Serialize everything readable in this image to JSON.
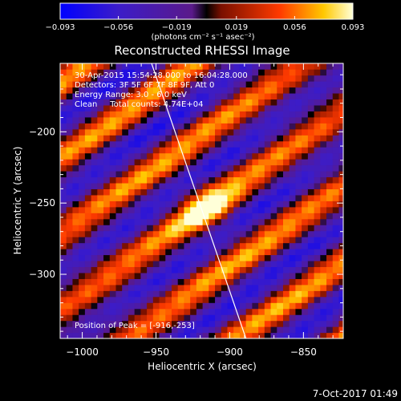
{
  "chart_data": {
    "type": "heatmap",
    "title": "Reconstructed RHESSI Image",
    "xlabel": "Heliocentric X (arcsec)",
    "ylabel": "Heliocentric Y (arcsec)",
    "xlim": [
      -1015,
      -823
    ],
    "ylim": [
      -345,
      -152
    ],
    "x_ticks": [
      -1000,
      -950,
      -900,
      -850
    ],
    "y_ticks": [
      -200,
      -250,
      -300
    ],
    "x_tick_labels": [
      "−1000",
      "−950",
      "−900",
      "−850"
    ],
    "y_tick_labels": [
      "−200",
      "−250",
      "−300"
    ],
    "colorbar": {
      "min": -0.093,
      "max": 0.093,
      "ticks": [
        -0.093,
        -0.056,
        -0.019,
        0.019,
        0.056,
        0.093
      ],
      "tick_labels": [
        "−0.093",
        "−0.056",
        "−0.019",
        "0.019",
        "0.056",
        "0.093"
      ],
      "units": "(photons cm⁻² s⁻¹ asec⁻²)"
    },
    "annotations": [
      "30-Apr-2015 15:54:28.000 to 16:04:28.000",
      "Detectors: 3F 5F 6F 7F 8F 9F, Att 0",
      "Energy Range: 3.0 - 6.0 keV",
      "Clean     Total counts: 4.74E+04"
    ],
    "peak_label": "Position of Peak = [-916,-253]",
    "peak": {
      "x": -916,
      "y": -253,
      "value": 0.093
    },
    "limb_line": [
      {
        "x": -953,
        "y": -152
      },
      {
        "x": -889,
        "y": -345
      }
    ],
    "stripe": {
      "angle_deg": 36,
      "period_arcsec": 43,
      "envelope_arcsec": 55
    },
    "grid": false
  },
  "footer": {
    "date": "7-Oct-2017 01:49"
  }
}
